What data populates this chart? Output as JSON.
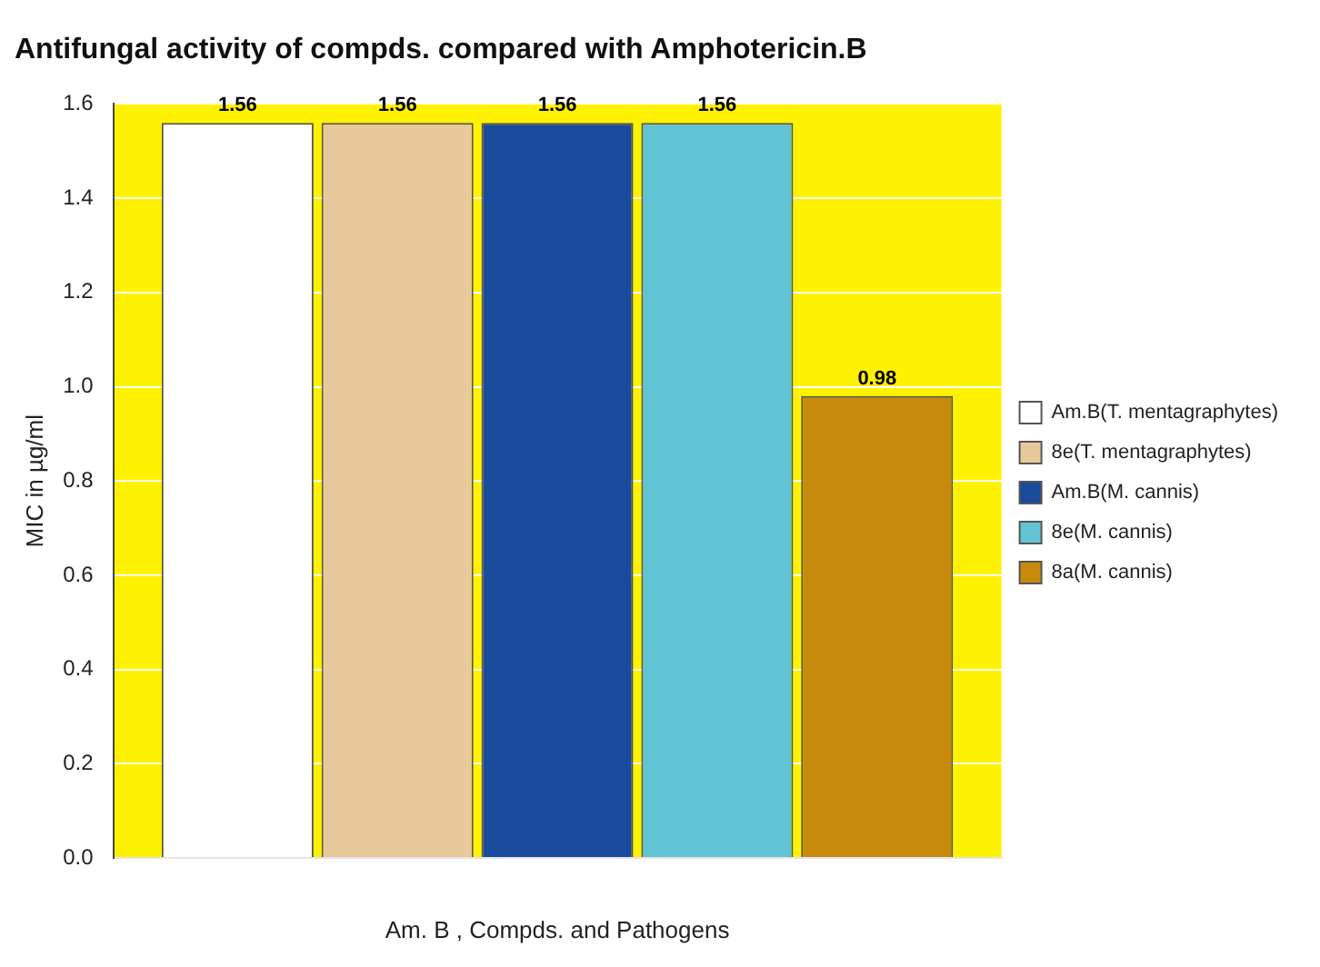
{
  "chart_data": {
    "type": "bar",
    "title": "Antifungal activity of compds. compared with Amphotericin.B",
    "xlabel": "Am. B , Compds. and Pathogens",
    "ylabel": "MIC in µg/ml",
    "categories": [
      null
    ],
    "series": [
      {
        "name": "Am.B(T. mentagraphytes)",
        "color": "#ffffff",
        "values": [
          1.56
        ]
      },
      {
        "name": "8e(T. mentagraphytes)",
        "color": "#e8c99c",
        "values": [
          1.56
        ]
      },
      {
        "name": "Am.B(M. cannis)",
        "color": "#1a4a9c",
        "values": [
          1.56
        ]
      },
      {
        "name": "8e(M. cannis)",
        "color": "#62c3d4",
        "values": [
          1.56
        ]
      },
      {
        "name": "8a(M. cannis)",
        "color": "#c88a0c",
        "values": [
          0.98
        ]
      }
    ],
    "ylim": [
      0,
      1.6
    ],
    "yticks": [
      {
        "value": 0,
        "label": "0.0"
      },
      0.2,
      0.4,
      0.6,
      0.8,
      {
        "value": 1,
        "label": "1.0"
      },
      1.2,
      1.4,
      1.6
    ],
    "grid": "y",
    "legend": "right",
    "data_labels": true
  }
}
